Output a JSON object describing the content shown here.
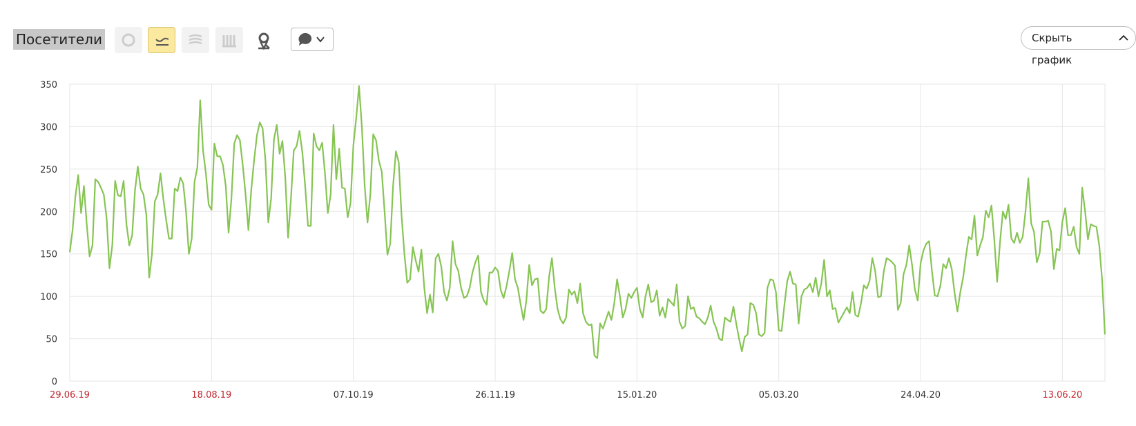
{
  "toolbar": {
    "metric": "Посетители",
    "hide_button": "Скрыть график"
  },
  "chart_data": {
    "type": "line",
    "color": "#86c453",
    "grid": true,
    "ylim": [
      0,
      350
    ],
    "yticks": [
      0,
      50,
      100,
      150,
      200,
      250,
      300,
      350
    ],
    "xtick_colors": [
      "#c0262d",
      "#c0262d",
      "#333333",
      "#333333",
      "#333333",
      "#333333",
      "#333333",
      "#c0262d"
    ],
    "categories": [
      "29.06.19",
      null,
      null,
      null,
      null,
      null,
      null,
      null,
      null,
      null,
      null,
      null,
      null,
      null,
      null,
      null,
      null,
      null,
      null,
      null,
      null,
      null,
      null,
      null,
      null,
      null,
      null,
      null,
      null,
      null,
      null,
      null,
      null,
      null,
      null,
      null,
      null,
      null,
      null,
      null,
      null,
      null,
      null,
      null,
      null,
      null,
      null,
      null,
      null,
      null,
      "18.08.19",
      null,
      null,
      null,
      null,
      null,
      null,
      null,
      null,
      null,
      null,
      null,
      null,
      null,
      null,
      null,
      null,
      null,
      null,
      null,
      null,
      null,
      null,
      null,
      null,
      null,
      null,
      null,
      null,
      null,
      null,
      null,
      null,
      null,
      null,
      null,
      null,
      null,
      null,
      null,
      null,
      null,
      null,
      null,
      null,
      null,
      null,
      null,
      null,
      null,
      "07.10.19",
      null,
      null,
      null,
      null,
      null,
      null,
      null,
      null,
      null,
      null,
      null,
      null,
      null,
      null,
      null,
      null,
      null,
      null,
      null,
      null,
      null,
      null,
      null,
      null,
      null,
      null,
      null,
      null,
      null,
      null,
      null,
      null,
      null,
      null,
      null,
      null,
      null,
      null,
      null,
      null,
      null,
      null,
      null,
      null,
      null,
      null,
      null,
      null,
      null,
      "26.11.19",
      null,
      null,
      null,
      null,
      null,
      null,
      null,
      null,
      null,
      null,
      null,
      null,
      null,
      null,
      null,
      null,
      null,
      null,
      null,
      null,
      null,
      null,
      null,
      null,
      null,
      null,
      null,
      null,
      null,
      null,
      null,
      null,
      null,
      null,
      null,
      null,
      null,
      null,
      null,
      null,
      null,
      null,
      null,
      null,
      null,
      null,
      null,
      null,
      null,
      "15.01.20",
      null,
      null,
      null,
      null,
      null,
      null,
      null,
      null,
      null,
      null,
      null,
      null,
      null,
      null,
      null,
      null,
      null,
      null,
      null,
      null,
      null,
      null,
      null,
      null,
      null,
      null,
      null,
      null,
      null,
      null,
      null,
      null,
      null,
      null,
      null,
      null,
      null,
      null,
      null,
      null,
      null,
      null,
      null,
      null,
      null,
      null,
      null,
      null,
      null,
      "05.03.20",
      null,
      null,
      null,
      null,
      null,
      null,
      null,
      null,
      null,
      null,
      null,
      null,
      null,
      null,
      null,
      null,
      null,
      null,
      null,
      null,
      null,
      null,
      null,
      null,
      null,
      null,
      null,
      null,
      null,
      null,
      null,
      null,
      null,
      null,
      null,
      null,
      null,
      null,
      null,
      null,
      null,
      null,
      null,
      null,
      null,
      null,
      null,
      null,
      null,
      "24.04.20",
      null,
      null,
      null,
      null,
      null,
      null,
      null,
      null,
      null,
      null,
      null,
      null,
      null,
      null,
      null,
      null,
      null,
      null,
      null,
      null,
      null,
      null,
      null,
      null,
      null,
      null,
      null,
      null,
      null,
      null,
      null,
      null,
      null,
      null,
      null,
      null,
      null,
      null,
      null,
      null,
      null,
      null,
      null,
      null,
      null,
      null,
      null,
      null,
      null,
      "13.06.20",
      null,
      null,
      null,
      null,
      null,
      null,
      null,
      null,
      null,
      null,
      null,
      null,
      null,
      null,
      null
    ],
    "values": [
      152,
      178,
      218,
      243,
      198,
      230,
      185,
      147,
      160,
      238,
      235,
      228,
      220,
      192,
      133,
      160,
      236,
      219,
      218,
      236,
      185,
      160,
      172,
      225,
      253,
      227,
      220,
      196,
      122,
      150,
      212,
      220,
      245,
      215,
      190,
      168,
      168,
      227,
      224,
      240,
      233,
      200,
      150,
      168,
      235,
      252,
      331,
      272,
      245,
      208,
      202,
      280,
      265,
      265,
      255,
      230,
      175,
      215,
      280,
      290,
      284,
      255,
      220,
      178,
      225,
      260,
      290,
      305,
      298,
      260,
      187,
      215,
      285,
      302,
      268,
      283,
      240,
      169,
      215,
      272,
      277,
      295,
      270,
      230,
      183,
      183,
      292,
      277,
      272,
      281,
      245,
      198,
      220,
      302,
      238,
      274,
      228,
      227,
      193,
      210,
      278,
      310,
      348,
      300,
      230,
      187,
      220,
      291,
      284,
      260,
      247,
      200,
      149,
      162,
      230,
      271,
      258,
      195,
      150,
      116,
      120,
      158,
      142,
      129,
      155,
      110,
      80,
      102,
      81,
      145,
      150,
      135,
      105,
      95,
      110,
      165,
      138,
      130,
      110,
      98,
      100,
      110,
      128,
      140,
      148,
      105,
      95,
      90,
      128,
      128,
      134,
      130,
      107,
      98,
      112,
      130,
      151,
      120,
      110,
      90,
      72,
      95,
      137,
      113,
      120,
      121,
      83,
      80,
      85,
      123,
      145,
      110,
      85,
      73,
      68,
      75,
      108,
      102,
      106,
      92,
      115,
      80,
      70,
      66,
      67,
      30,
      27,
      68,
      62,
      72,
      82,
      72,
      92,
      120,
      100,
      75,
      85,
      103,
      98,
      105,
      110,
      85,
      75,
      100,
      114,
      93,
      95,
      107,
      77,
      87,
      75,
      97,
      93,
      89,
      114,
      70,
      62,
      65,
      100,
      85,
      87,
      76,
      74,
      70,
      67,
      75,
      89,
      70,
      62,
      50,
      48,
      75,
      72,
      70,
      88,
      68,
      50,
      35,
      52,
      55,
      92,
      90,
      80,
      55,
      53,
      57,
      110,
      120,
      119,
      105,
      60,
      59,
      90,
      118,
      129,
      115,
      114,
      68,
      100,
      108,
      110,
      115,
      105,
      122,
      100,
      115,
      143,
      100,
      107,
      85,
      86,
      69,
      75,
      81,
      87,
      80,
      105,
      78,
      76,
      92,
      113,
      109,
      118,
      145,
      130,
      99,
      100,
      129,
      145,
      143,
      140,
      136,
      84,
      92,
      126,
      137,
      160,
      137,
      108,
      95,
      139,
      154,
      162,
      165,
      130,
      101,
      100,
      113,
      138,
      133,
      145,
      132,
      104,
      82,
      105,
      122,
      148,
      170,
      167,
      195,
      148,
      160,
      170,
      201,
      193,
      207,
      167,
      117,
      163,
      200,
      191,
      208,
      168,
      163,
      175,
      163,
      170,
      200,
      239,
      186,
      176,
      140,
      151,
      188,
      188,
      189,
      176,
      132,
      156,
      154,
      188,
      204,
      172,
      172,
      182,
      158,
      150,
      228,
      200,
      167,
      185,
      183,
      182,
      160,
      120,
      55
    ]
  }
}
